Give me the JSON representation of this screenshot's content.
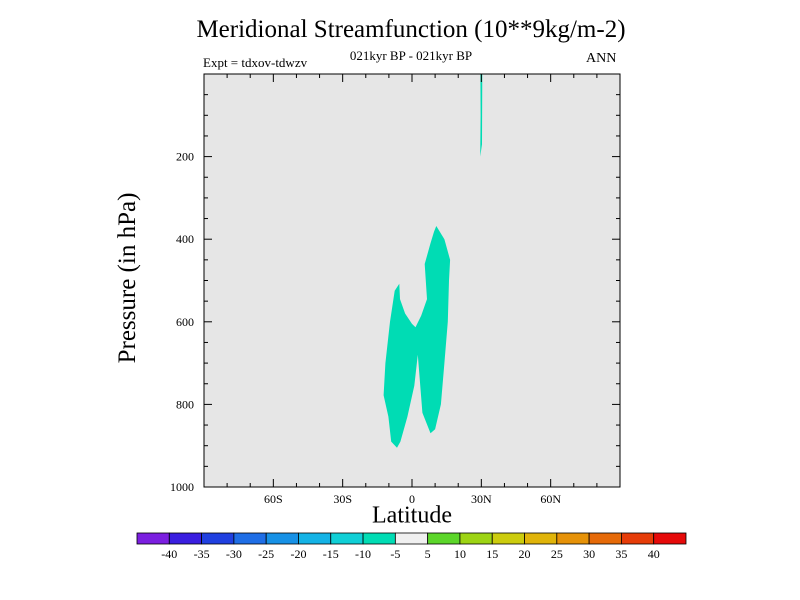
{
  "chart_data": {
    "type": "heatmap",
    "title": "Meridional Streamfunction (10**9kg/m-2)",
    "subtitle": "021kyr BP - 021kyr BP",
    "left_label": "Expt = tdxov-tdwzv",
    "right_label": "ANN",
    "xlabel": "Latitude",
    "ylabel": "Pressure (in hPa)",
    "xlim": [
      -90,
      90
    ],
    "ylim": [
      1000,
      0
    ],
    "x_ticks": [
      {
        "value": -60,
        "label": "60S"
      },
      {
        "value": -30,
        "label": "30S"
      },
      {
        "value": 0,
        "label": "0"
      },
      {
        "value": 30,
        "label": "30N"
      },
      {
        "value": 60,
        "label": "60N"
      }
    ],
    "y_ticks": [
      {
        "value": 200,
        "label": "200"
      },
      {
        "value": 400,
        "label": "400"
      },
      {
        "value": 600,
        "label": "600"
      },
      {
        "value": 800,
        "label": "800"
      },
      {
        "value": 1000,
        "label": "1000"
      }
    ],
    "background_color": "#e6e6e6",
    "colorbar": {
      "labels": [
        "-40",
        "-35",
        "-30",
        "-25",
        "-20",
        "-15",
        "-10",
        "-5",
        "5",
        "10",
        "15",
        "20",
        "25",
        "30",
        "35",
        "40"
      ],
      "colors": [
        "#7b1fe0",
        "#3a1ee0",
        "#2040e0",
        "#1f6ee6",
        "#1791e6",
        "#14b3e6",
        "#10cfd6",
        "#00dcb4",
        "#f0f0f0",
        "#5cd62a",
        "#9dd414",
        "#cccc0e",
        "#e0b40a",
        "#e69208",
        "#e66a08",
        "#e63c08",
        "#e60a0a"
      ]
    },
    "regions": [
      {
        "name": "-10 to -5 contour region (main)",
        "color": "#00dcb4",
        "points": [
          [
            -10.2,
            830
          ],
          [
            -12.3,
            778
          ],
          [
            -11.5,
            700
          ],
          [
            -9.5,
            600
          ],
          [
            -7.5,
            525
          ],
          [
            -5.5,
            508
          ],
          [
            -5.2,
            545
          ],
          [
            -3,
            580
          ],
          [
            0,
            605
          ],
          [
            1.5,
            613
          ],
          [
            4,
            585
          ],
          [
            6.5,
            545
          ],
          [
            5.5,
            460
          ],
          [
            8,
            410
          ],
          [
            9.5,
            382
          ],
          [
            10.5,
            368
          ],
          [
            14,
            400
          ],
          [
            16.5,
            450
          ],
          [
            16,
            500
          ],
          [
            15.5,
            600
          ],
          [
            14,
            700
          ],
          [
            12.5,
            800
          ],
          [
            10,
            860
          ],
          [
            8,
            870
          ],
          [
            4.5,
            820
          ],
          [
            2.5,
            680
          ],
          [
            1,
            755
          ],
          [
            -2,
            830
          ],
          [
            -5,
            890
          ],
          [
            -6.5,
            905
          ],
          [
            -9,
            890
          ]
        ]
      },
      {
        "name": "-10 to -5 contour region (upper)",
        "color": "#00dcb4",
        "points": [
          [
            29.6,
            0
          ],
          [
            30.4,
            0
          ],
          [
            30.3,
            170
          ],
          [
            29.5,
            200
          ],
          [
            29.7,
            100
          ]
        ]
      }
    ]
  }
}
